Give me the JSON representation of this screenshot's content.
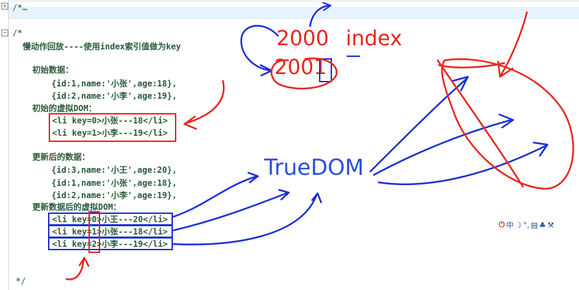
{
  "editor": {
    "top_line": "/*…",
    "comment_open": "/*",
    "heading": "慢动作回放----使用index索引值做为key",
    "initial_data_label": "初始数据：",
    "initial_data": [
      "{id:1,name:'小张',age:18},",
      "{id:2,name:'小李',age:19},"
    ],
    "initial_vdom_label": "初始的虚拟DOM：",
    "initial_vdom": [
      "<li key=0>小张---18</li>",
      "<li key=1>小李---19</li>"
    ],
    "updated_data_label": "更新后的数据：",
    "updated_data": [
      "{id:3,name:'小王',age:20},",
      "{id:1,name:'小张',age:18},",
      "{id:2,name:'小李',age:19},"
    ],
    "updated_vdom_label": "更新数据后的虚拟DOM：",
    "updated_vdom": [
      "<li key=0>小王---20</li>",
      "<li key=1>小张---18</li>",
      "<li key=2>小李---19</li>"
    ],
    "comment_close": "*/"
  },
  "annotations": {
    "num_2000": "2000",
    "num_2001": "2001",
    "index_word": "index",
    "true_dom": "TrueDOM"
  },
  "ime_toolbar": {
    "items": [
      "中",
      "☽",
      "°,",
      "▤",
      "♣",
      "⚒"
    ]
  },
  "colors": {
    "comment": "#3f7f5f",
    "red_ink": "#e8261e",
    "blue_ink": "#1b2fd6",
    "truedom_blue": "#2c50d8",
    "line_highlight": "#e8f2fe"
  }
}
